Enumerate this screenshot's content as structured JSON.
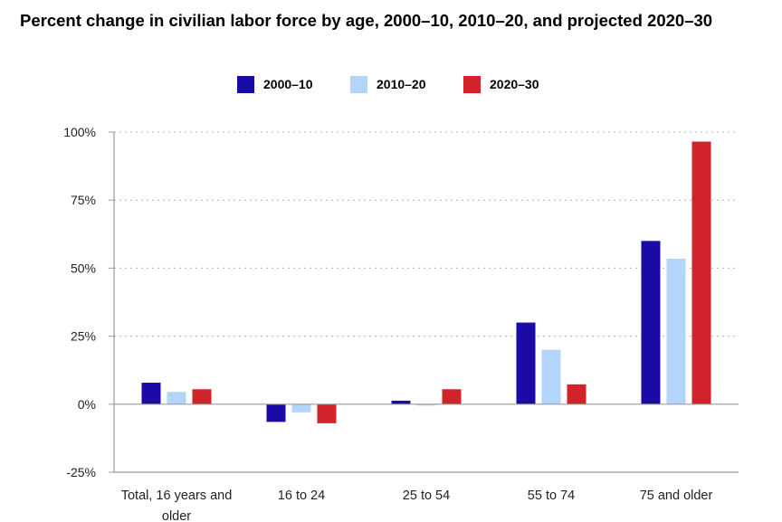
{
  "chart_data": {
    "type": "bar",
    "title": "Percent change in civilian labor force by age, 2000–10, 2010–20, and projected 2020–30",
    "categories": [
      "Total, 16 years and older",
      "16 to 24",
      "25 to 54",
      "55 to 74",
      "75 and older"
    ],
    "category_lines": [
      [
        "Total, 16 years and",
        "older"
      ],
      [
        "16 to 24"
      ],
      [
        "25 to 54"
      ],
      [
        "55 to 74"
      ],
      [
        "75 and older"
      ]
    ],
    "series": [
      {
        "name": "2000–10",
        "color": "#1a0aa6",
        "values": [
          7.9,
          -6.5,
          1.3,
          30.0,
          60.0
        ]
      },
      {
        "name": "2010–20",
        "color": "#b3d5fc",
        "values": [
          4.5,
          -3.0,
          -0.5,
          20.0,
          53.5
        ]
      },
      {
        "name": "2020–30",
        "color": "#d2232a",
        "values": [
          5.5,
          -7.0,
          5.5,
          7.3,
          96.5
        ]
      }
    ],
    "y_ticks": [
      100,
      75,
      50,
      25,
      0,
      -25
    ],
    "y_tick_labels": [
      "100%",
      "75%",
      "50%",
      "25%",
      "0%",
      "-25%"
    ],
    "ylim": [
      -25,
      100
    ],
    "xlabel": "",
    "ylabel": "",
    "grid": true,
    "legend_position": "top-center"
  }
}
